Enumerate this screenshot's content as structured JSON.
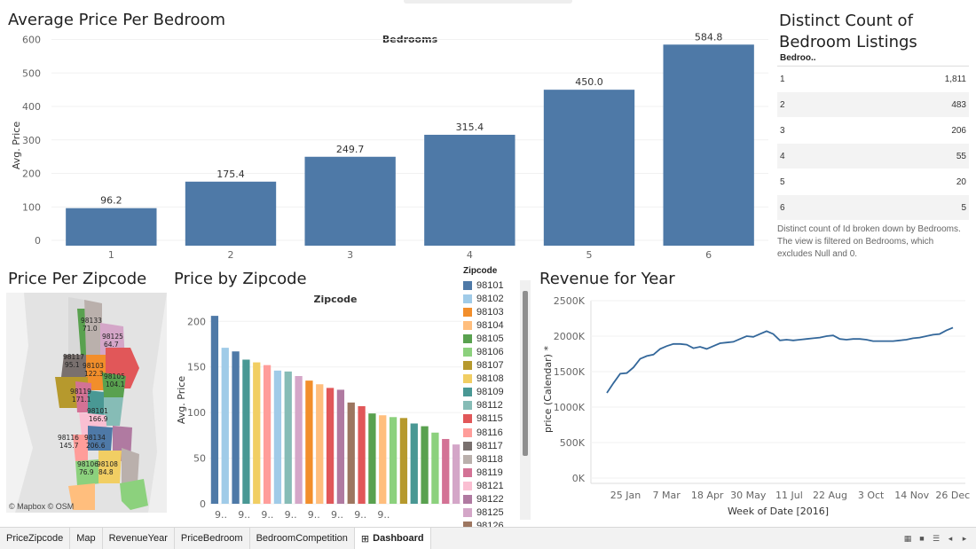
{
  "bedroom_chart": {
    "title": "Average Price Per Bedroom",
    "header": "Bedrooms",
    "ylabel": "Avg. Price",
    "ylim": [
      0,
      620
    ],
    "yticks": [
      0,
      100,
      200,
      300,
      400,
      500,
      600
    ],
    "categories": [
      "1",
      "2",
      "3",
      "4",
      "5",
      "6"
    ],
    "values": [
      96.2,
      175.4,
      249.7,
      315.4,
      450.0,
      584.8
    ],
    "labels": [
      "96.2",
      "175.4",
      "249.7",
      "315.4",
      "450.0",
      "584.8"
    ],
    "color": "#4e79a7"
  },
  "distinct_table": {
    "title_line1": "Distinct Count of",
    "title_line2": "Bedroom Listings",
    "header": "Bedroo..",
    "rows": [
      {
        "bedrooms": "1",
        "count": "1,811"
      },
      {
        "bedrooms": "2",
        "count": "483"
      },
      {
        "bedrooms": "3",
        "count": "206"
      },
      {
        "bedrooms": "4",
        "count": "55"
      },
      {
        "bedrooms": "5",
        "count": "20"
      },
      {
        "bedrooms": "6",
        "count": "5"
      }
    ],
    "note": "Distinct count of Id broken down by Bedrooms. The view is filtered on Bedrooms, which excludes Null and 0."
  },
  "map": {
    "title": "Price Per Zipcode",
    "credit": "© Mapbox © OSM",
    "labels": [
      {
        "zip": "98133",
        "value": "71.0"
      },
      {
        "zip": "98125",
        "value": "64.7"
      },
      {
        "zip": "98117",
        "value": "95.1"
      },
      {
        "zip": "98103",
        "value": "122.3"
      },
      {
        "zip": "98105",
        "value": "104.1"
      },
      {
        "zip": "98119",
        "value": "171.1"
      },
      {
        "zip": "98101",
        "value": "166.9"
      },
      {
        "zip": "98116",
        "value": "145.7"
      },
      {
        "zip": "98134",
        "value": "206.6"
      },
      {
        "zip": "98106",
        "value": "76.9"
      },
      {
        "zip": "98108",
        "value": "84.8"
      }
    ]
  },
  "zip_chart": {
    "title": "Price by Zipcode",
    "header": "Zipcode",
    "ylabel": "Avg. Price",
    "ylim": [
      0,
      210
    ],
    "yticks": [
      0,
      50,
      100,
      150,
      200
    ],
    "xtick_label": "9..",
    "xtick_count": 8,
    "values": [
      206,
      171,
      167,
      158,
      155,
      152,
      146,
      145,
      140,
      135,
      131,
      127,
      125,
      111,
      107,
      99,
      97,
      95,
      94,
      88,
      85,
      78,
      71,
      65
    ],
    "colors": [
      "#4e79a7",
      "#a0cbe8",
      "#4e79a7",
      "#499894",
      "#f1ce63",
      "#ff9d9a",
      "#a0cbe8",
      "#86bcb6",
      "#d4a6c8",
      "#f28e2b",
      "#ffbe7d",
      "#e15759",
      "#b07aa1",
      "#9d7660",
      "#e15759",
      "#59a14f",
      "#ffbe7d",
      "#8cd17d",
      "#b6992d",
      "#499894",
      "#59a14f",
      "#8cd17d",
      "#d37295",
      "#d4a6c8"
    ]
  },
  "legend": {
    "title": "Zipcode",
    "items": [
      {
        "zip": "98101",
        "color": "#4e79a7"
      },
      {
        "zip": "98102",
        "color": "#a0cbe8"
      },
      {
        "zip": "98103",
        "color": "#f28e2b"
      },
      {
        "zip": "98104",
        "color": "#ffbe7d"
      },
      {
        "zip": "98105",
        "color": "#59a14f"
      },
      {
        "zip": "98106",
        "color": "#8cd17d"
      },
      {
        "zip": "98107",
        "color": "#b6992d"
      },
      {
        "zip": "98108",
        "color": "#f1ce63"
      },
      {
        "zip": "98109",
        "color": "#499894"
      },
      {
        "zip": "98112",
        "color": "#86bcb6"
      },
      {
        "zip": "98115",
        "color": "#e15759"
      },
      {
        "zip": "98116",
        "color": "#ff9d9a"
      },
      {
        "zip": "98117",
        "color": "#79706e"
      },
      {
        "zip": "98118",
        "color": "#bab0ac"
      },
      {
        "zip": "98119",
        "color": "#d37295"
      },
      {
        "zip": "98121",
        "color": "#fabfd2"
      },
      {
        "zip": "98122",
        "color": "#b07aa1"
      },
      {
        "zip": "98125",
        "color": "#d4a6c8"
      },
      {
        "zip": "98126",
        "color": "#9d7660"
      }
    ]
  },
  "revenue_chart": {
    "title": "Revenue for Year",
    "ylabel": "price (Calendar) *",
    "xlabel": "Week of Date [2016]",
    "ylim": [
      0,
      2500000
    ],
    "yticks": [
      0,
      500000,
      1000000,
      1500000,
      2000000,
      2500000
    ],
    "ytick_labels": [
      "0K",
      "500K",
      "1000K",
      "1500K",
      "2000K",
      "2500K"
    ],
    "xticks": [
      "25 Jan",
      "7 Mar",
      "18 Apr",
      "30 May",
      "11 Jul",
      "22 Aug",
      "3 Oct",
      "14 Nov",
      "26 Dec"
    ],
    "values": [
      1200000,
      1340000,
      1470000,
      1480000,
      1560000,
      1680000,
      1720000,
      1740000,
      1820000,
      1860000,
      1890000,
      1890000,
      1880000,
      1830000,
      1850000,
      1820000,
      1860000,
      1900000,
      1910000,
      1920000,
      1960000,
      2000000,
      1990000,
      2030000,
      2070000,
      2030000,
      1940000,
      1950000,
      1940000,
      1950000,
      1960000,
      1970000,
      1980000,
      2000000,
      2010000,
      1960000,
      1950000,
      1960000,
      1960000,
      1950000,
      1930000,
      1930000,
      1930000,
      1930000,
      1940000,
      1950000,
      1970000,
      1980000,
      2000000,
      2020000,
      2030000,
      2080000,
      2120000
    ],
    "color": "#33679a"
  },
  "tabs": [
    {
      "label": "PriceZipcode",
      "active": false
    },
    {
      "label": "Map",
      "active": false
    },
    {
      "label": "RevenueYear",
      "active": false
    },
    {
      "label": "PriceBedroom",
      "active": false
    },
    {
      "label": "BedroomCompetition",
      "active": false
    },
    {
      "label": "Dashboard",
      "active": true
    }
  ],
  "dashboard_icon": "⊞"
}
